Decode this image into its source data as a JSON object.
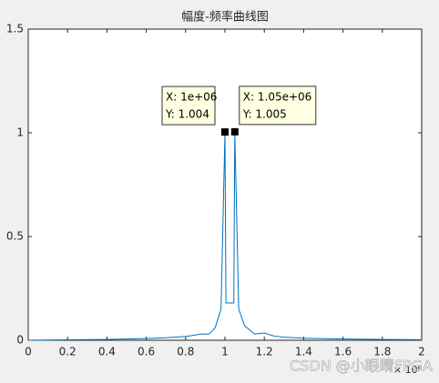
{
  "chart_data": {
    "type": "line",
    "title": "幅度-频率曲线图",
    "x": [
      0,
      200000,
      400000,
      600000,
      700000,
      800000,
      850000,
      880000,
      920000,
      950000,
      980000,
      1000000,
      1005000,
      1045000,
      1050000,
      1070000,
      1100000,
      1150000,
      1200000,
      1250000,
      1300000,
      1400000,
      1600000,
      1800000,
      2000000
    ],
    "series": [
      {
        "color": "#0072bd",
        "values": [
          0,
          0.002,
          0.004,
          0.008,
          0.012,
          0.018,
          0.025,
          0.03,
          0.03,
          0.06,
          0.15,
          1.004,
          0.18,
          0.18,
          1.005,
          0.15,
          0.07,
          0.03,
          0.035,
          0.02,
          0.015,
          0.01,
          0.006,
          0.004,
          0.003
        ]
      }
    ],
    "xlim": [
      0,
      2000000
    ],
    "xticks": [
      0,
      {
        "value": 200000,
        "label": "0.2"
      },
      {
        "value": 400000,
        "label": "0.4"
      },
      {
        "value": 600000,
        "label": "0.6"
      },
      {
        "value": 800000,
        "label": "0.8"
      },
      {
        "value": 1000000,
        "label": "1"
      },
      {
        "value": 1200000,
        "label": "1.2"
      },
      {
        "value": 1400000,
        "label": "1.4"
      },
      {
        "value": 1600000,
        "label": "1.6"
      },
      {
        "value": 1800000,
        "label": "1.8"
      },
      {
        "value": 2000000,
        "label": "2"
      }
    ],
    "x_multiplier": "× 10⁶",
    "ylim": [
      0,
      1.5
    ],
    "yticks": [
      0,
      0.5,
      1,
      1.5
    ],
    "data_tips": [
      {
        "x": 1000000,
        "y": 1.004,
        "x_label": "X: 1e+06",
        "y_label": "Y: 1.004"
      },
      {
        "x": 1050000,
        "y": 1.005,
        "x_label": "X: 1.05e+06",
        "y_label": "Y: 1.005"
      }
    ],
    "watermark": "CSDN @小眼睛FPGA"
  }
}
